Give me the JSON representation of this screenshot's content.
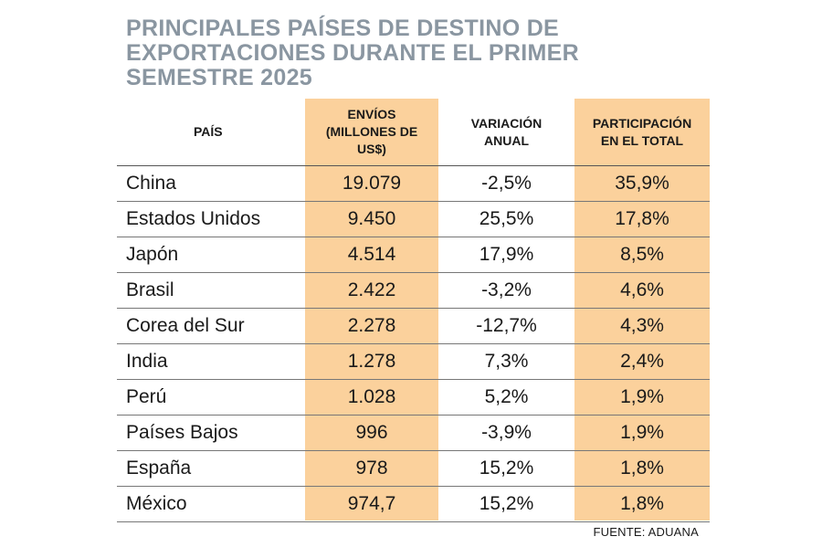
{
  "title_lines": [
    "PRINCIPALES PAÍSES DE DESTINO DE",
    "EXPORTACIONES DURANTE EL PRIMER",
    "SEMESTRE 2025"
  ],
  "headers": {
    "pais": "PAÍS",
    "envios": [
      "ENVÍOS",
      "(MILLONES DE",
      "US$)"
    ],
    "variacion": [
      "VARIACIÓN",
      "ANUAL"
    ],
    "participacion": [
      "PARTICIPACIÓN",
      "EN EL TOTAL"
    ]
  },
  "source": "FUENTE: ADUANA",
  "colors": {
    "title": "#8a96a1",
    "highlight_column": "#fbd19c",
    "text": "#1a1a1a"
  },
  "chart_data": {
    "type": "table",
    "columns": [
      "PAÍS",
      "ENVÍOS (MILLONES DE US$)",
      "VARIACIÓN ANUAL",
      "PARTICIPACIÓN EN EL TOTAL"
    ],
    "rows": [
      [
        "China",
        "19.079",
        "-2,5%",
        "35,9%"
      ],
      [
        "Estados Unidos",
        "9.450",
        "25,5%",
        "17,8%"
      ],
      [
        "Japón",
        "4.514",
        "17,9%",
        "8,5%"
      ],
      [
        "Brasil",
        "2.422",
        "-3,2%",
        "4,6%"
      ],
      [
        "Corea del Sur",
        "2.278",
        "-12,7%",
        "4,3%"
      ],
      [
        "India",
        "1.278",
        "7,3%",
        "2,4%"
      ],
      [
        "Perú",
        "1.028",
        "5,2%",
        "1,9%"
      ],
      [
        "Países Bajos",
        "996",
        "-3,9%",
        "1,9%"
      ],
      [
        "España",
        "978",
        "15,2%",
        "1,8%"
      ],
      [
        "México",
        "974,7",
        "15,2%",
        "1,8%"
      ]
    ]
  }
}
